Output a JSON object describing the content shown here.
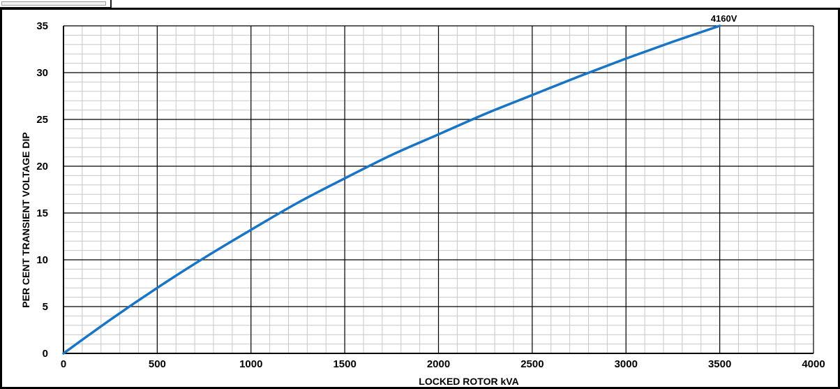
{
  "chart_data": {
    "type": "line",
    "title": "",
    "xlabel": "LOCKED ROTOR kVA",
    "ylabel": "PER CENT TRANSIENT VOLTAGE DIP",
    "xlim": [
      0,
      4000
    ],
    "ylim": [
      0,
      35
    ],
    "x_ticks": [
      0,
      500,
      1000,
      1500,
      2000,
      2500,
      3000,
      3500,
      4000
    ],
    "y_ticks": [
      0,
      5,
      10,
      15,
      20,
      25,
      30,
      35
    ],
    "grid": true,
    "series": [
      {
        "name": "4160V",
        "color": "#1874c4",
        "points": [
          [
            0,
            0
          ],
          [
            250,
            3.6
          ],
          [
            500,
            7.0
          ],
          [
            750,
            10.2
          ],
          [
            1000,
            13.2
          ],
          [
            1250,
            16.1
          ],
          [
            1500,
            18.7
          ],
          [
            1750,
            21.2
          ],
          [
            2000,
            23.4
          ],
          [
            2250,
            25.6
          ],
          [
            2500,
            27.6
          ],
          [
            2750,
            29.6
          ],
          [
            3000,
            31.5
          ],
          [
            3250,
            33.3
          ],
          [
            3500,
            35.0
          ]
        ]
      }
    ]
  }
}
